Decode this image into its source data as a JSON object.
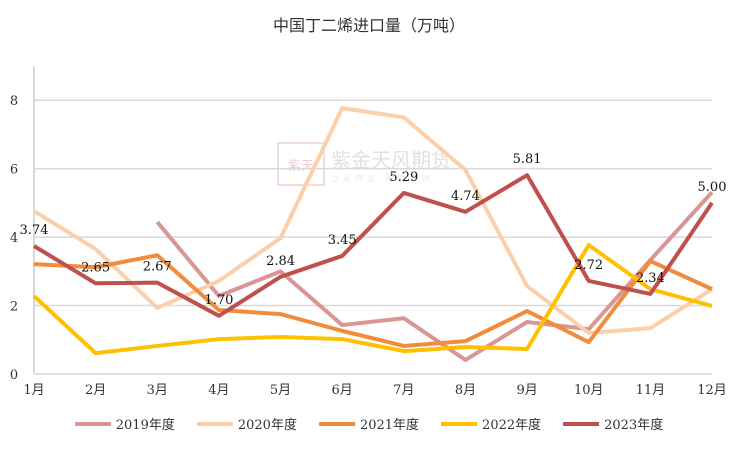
{
  "chart_data": {
    "type": "line",
    "title": "中国丁二烯进口量（万吨）",
    "categories": [
      "1月",
      "2月",
      "3月",
      "4月",
      "5月",
      "6月",
      "7月",
      "8月",
      "9月",
      "10月",
      "11月",
      "12月"
    ],
    "ylim": [
      0,
      9
    ],
    "yticks": [
      0,
      2,
      4,
      6,
      8
    ],
    "grid": true,
    "legend_position": "bottom",
    "series": [
      {
        "name": "2019年度",
        "color": "#d99694",
        "values": [
          null,
          null,
          4.44,
          2.28,
          3.0,
          1.43,
          1.63,
          0.41,
          1.52,
          1.31,
          3.33,
          5.31
        ]
      },
      {
        "name": "2020年度",
        "color": "#fccfa8",
        "values": [
          4.76,
          3.65,
          1.93,
          2.72,
          3.97,
          7.77,
          7.5,
          5.96,
          2.57,
          1.2,
          1.34,
          2.48
        ]
      },
      {
        "name": "2021年度",
        "color": "#f18c3c",
        "values": [
          3.21,
          3.12,
          3.47,
          1.87,
          1.75,
          1.26,
          0.82,
          0.96,
          1.84,
          0.93,
          3.3,
          2.48
        ]
      },
      {
        "name": "2022年度",
        "color": "#ffc000",
        "values": [
          2.28,
          0.61,
          0.82,
          1.02,
          1.08,
          1.02,
          0.67,
          0.79,
          0.73,
          3.77,
          2.48,
          1.99
        ]
      },
      {
        "name": "2023年度",
        "color": "#c0504d",
        "values": [
          3.74,
          2.65,
          2.67,
          1.7,
          2.84,
          3.45,
          5.29,
          4.74,
          5.81,
          2.72,
          2.34,
          5.0
        ],
        "data_labels": [
          "3.74",
          "2.65",
          "2.67",
          "1.70",
          "2.84",
          "3.45",
          "5.29",
          "4.74",
          "5.81",
          "2.72",
          "2.34",
          "5.00"
        ]
      }
    ]
  },
  "watermark": {
    "brand": "紫金天风期货",
    "slogan": "立足产业 研究驱动",
    "seal": "紫天金风"
  }
}
